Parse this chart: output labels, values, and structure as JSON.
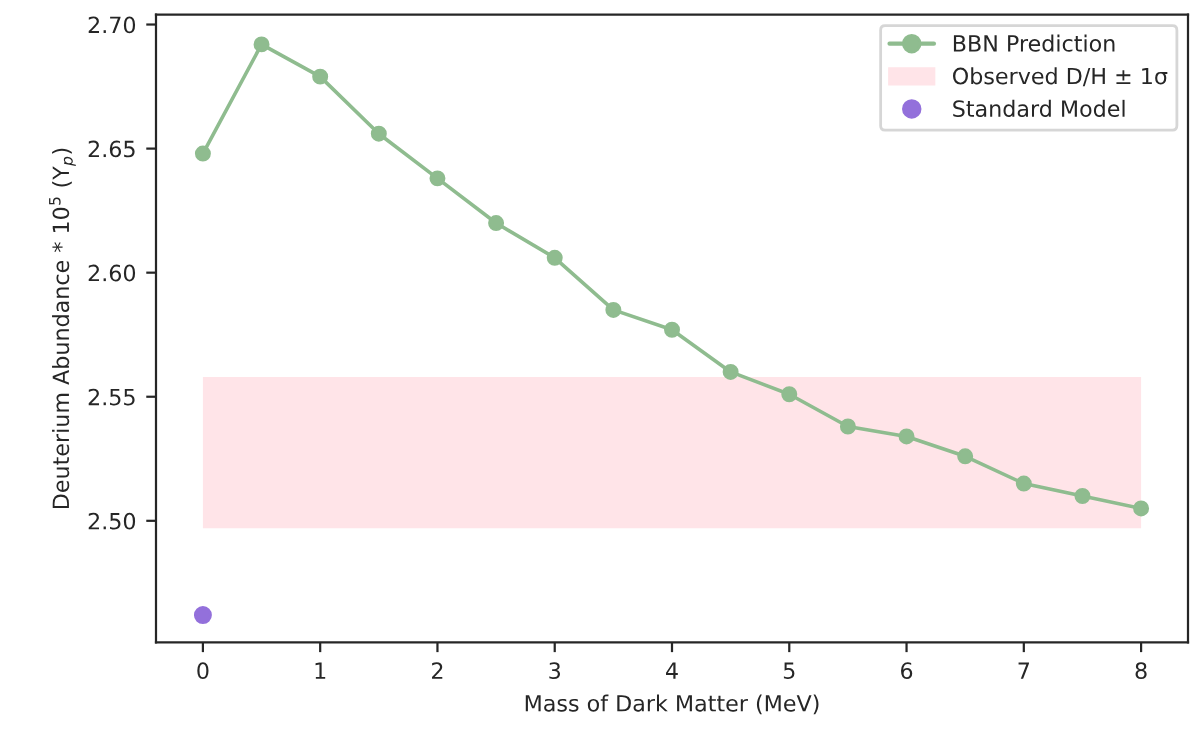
{
  "chart_data": {
    "type": "line",
    "xlabel": "Mass of Dark Matter (MeV)",
    "ylabel": "Deuterium Abundance * 10$^{5}$ (Y$_{p}$)",
    "xlim": [
      -0.4,
      8.4
    ],
    "xticks": [
      0,
      1,
      2,
      3,
      4,
      5,
      6,
      7,
      8
    ],
    "ylim": [
      2.451,
      2.704
    ],
    "yticks": [
      {
        "value": 2.5,
        "label": "2.50"
      },
      2.55,
      {
        "value": 2.6,
        "label": "2.60"
      },
      2.65,
      {
        "value": 2.7,
        "label": "2.70"
      }
    ],
    "series": [
      {
        "name": "BBN Prediction",
        "color": "#8fbc8f",
        "marker": "circle",
        "x": [
          0,
          0.5,
          1,
          1.5,
          2,
          2.5,
          3,
          3.5,
          4,
          4.5,
          5,
          5.5,
          6,
          6.5,
          7,
          7.5,
          8
        ],
        "values": [
          2.648,
          2.692,
          2.679,
          2.656,
          2.638,
          2.62,
          2.606,
          2.585,
          2.577,
          2.56,
          2.551,
          2.538,
          2.534,
          2.526,
          2.515,
          2.51,
          2.505
        ]
      },
      {
        "name": "Standard Model",
        "type": "scatter",
        "color": "#9370db",
        "x": [
          0
        ],
        "values": [
          2.462
        ]
      }
    ],
    "bands": [
      {
        "axis": "y",
        "from": 2.497,
        "to": 2.558,
        "label": "Observed D/H ± 1σ",
        "color": "#ffe4e8"
      }
    ],
    "legend": "top right",
    "grid": false
  }
}
